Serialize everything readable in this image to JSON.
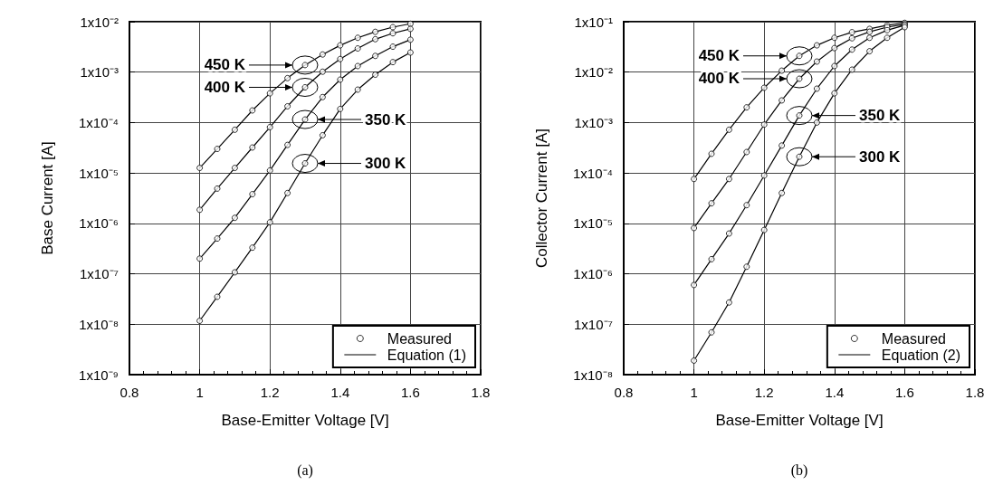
{
  "chart_data": [
    {
      "type": "scatter",
      "xlabel": "Base-Emitter Voltage [V]",
      "ylabel": "Base Current [A]",
      "log": "y",
      "grid": true,
      "legend": "bottom right",
      "xlim": [
        0.8,
        1.8
      ],
      "xticks": [
        0.8,
        1,
        1.2,
        1.4,
        1.6,
        1.8
      ],
      "ylim": [
        1e-09,
        0.01
      ],
      "yticks": [
        {
          "value": 1e-09,
          "label": "1x10⁻⁹"
        },
        {
          "value": 1e-08,
          "label": "1x10⁻⁸"
        },
        {
          "value": 1e-07,
          "label": "1x10⁻⁷"
        },
        {
          "value": 1e-06,
          "label": "1x10⁻⁶"
        },
        {
          "value": 1e-05,
          "label": "1x10⁻⁵"
        },
        {
          "value": 0.0001,
          "label": "1x10⁻⁴"
        },
        {
          "value": 0.001,
          "label": "1x10⁻³"
        },
        {
          "value": 0.01,
          "label": "1x10⁻²"
        }
      ],
      "series": [
        {
          "name": "Measured",
          "marker": "circle",
          "color": "#000000",
          "x": [
            1,
            1.05,
            1.1,
            1.15,
            1.2,
            1.25,
            1.3,
            1.35,
            1.4,
            1.45,
            1.5,
            1.55,
            1.6,
            1,
            1.05,
            1.1,
            1.15,
            1.2,
            1.25,
            1.3,
            1.35,
            1.4,
            1.45,
            1.5,
            1.55,
            1.6,
            1,
            1.05,
            1.1,
            1.15,
            1.2,
            1.25,
            1.3,
            1.35,
            1.4,
            1.45,
            1.5,
            1.55,
            1.6,
            1,
            1.05,
            1.1,
            1.15,
            1.2,
            1.25,
            1.3,
            1.35,
            1.4,
            1.45,
            1.5,
            1.55,
            1.6
          ],
          "values": [
            1.26e-05,
            3e-05,
            7.2e-05,
            0.000174,
            0.00038,
            0.00076,
            0.00138,
            0.00224,
            0.0034,
            0.0048,
            0.0063,
            0.0078,
            0.0091,
            1.86e-06,
            4.9e-06,
            1.26e-05,
            3.2e-05,
            8.1e-05,
            0.00021,
            0.0005,
            0.00102,
            0.00182,
            0.00295,
            0.0045,
            0.0059,
            0.0072,
            2e-07,
            5e-07,
            1.29e-06,
            3.8e-06,
            1.12e-05,
            3.6e-05,
            0.000115,
            0.00032,
            0.00071,
            0.00132,
            0.0021,
            0.0032,
            0.0044,
            1.17e-08,
            3.5e-08,
            1.07e-07,
            3.3e-07,
            1.05e-06,
            4e-06,
            1.55e-05,
            5.6e-05,
            0.000186,
            0.00045,
            0.00089,
            0.00158,
            0.00245
          ]
        },
        {
          "name": "Equation (1)",
          "type": "line",
          "marker": "none",
          "line_style": "solid",
          "color": "#000000",
          "x": [
            1,
            1.05,
            1.1,
            1.15,
            1.2,
            1.25,
            1.3,
            1.35,
            1.4,
            1.45,
            1.5,
            1.55,
            1.6,
            null,
            1,
            1.05,
            1.1,
            1.15,
            1.2,
            1.25,
            1.3,
            1.35,
            1.4,
            1.45,
            1.5,
            1.55,
            1.6,
            null,
            1,
            1.05,
            1.1,
            1.15,
            1.2,
            1.25,
            1.3,
            1.35,
            1.4,
            1.45,
            1.5,
            1.55,
            1.6,
            null,
            1,
            1.05,
            1.1,
            1.15,
            1.2,
            1.25,
            1.3,
            1.35,
            1.4,
            1.45,
            1.5,
            1.55,
            1.6
          ],
          "values": [
            1.26e-05,
            3e-05,
            7.2e-05,
            0.000174,
            0.00038,
            0.00076,
            0.00138,
            0.00224,
            0.0034,
            0.0048,
            0.0063,
            0.0078,
            0.0091,
            null,
            1.86e-06,
            4.9e-06,
            1.26e-05,
            3.2e-05,
            8.1e-05,
            0.00021,
            0.0005,
            0.00102,
            0.00182,
            0.00295,
            0.0045,
            0.0059,
            0.0072,
            null,
            2e-07,
            5e-07,
            1.29e-06,
            3.8e-06,
            1.12e-05,
            3.6e-05,
            0.000115,
            0.00032,
            0.00071,
            0.00132,
            0.0021,
            0.0032,
            0.0044,
            null,
            1.17e-08,
            3.5e-08,
            1.07e-07,
            3.3e-07,
            1.05e-06,
            4e-06,
            1.55e-05,
            5.6e-05,
            0.000186,
            0.00045,
            0.00089,
            0.00158,
            0.00245
          ]
        }
      ],
      "annotations": [
        "450 K",
        "400 K",
        "350 K",
        "300 K",
        "(a)"
      ]
    },
    {
      "type": "scatter",
      "xlabel": "Base-Emitter Voltage [V]",
      "ylabel": "Collector Current [A]",
      "log": "y",
      "grid": true,
      "legend": "bottom right",
      "xlim": [
        0.8,
        1.8
      ],
      "xticks": [
        0.8,
        1,
        1.2,
        1.4,
        1.6,
        1.8
      ],
      "ylim": [
        1e-08,
        0.1
      ],
      "yticks": [
        {
          "value": 1e-08,
          "label": "1x10⁻⁸"
        },
        {
          "value": 1e-07,
          "label": "1x10⁻⁷"
        },
        {
          "value": 1e-06,
          "label": "1x10⁻⁶"
        },
        {
          "value": 1e-05,
          "label": "1x10⁻⁵"
        },
        {
          "value": 0.0001,
          "label": "1x10⁻⁴"
        },
        {
          "value": 0.001,
          "label": "1x10⁻³"
        },
        {
          "value": 0.01,
          "label": "1x10⁻²"
        },
        {
          "value": 0.1,
          "label": "1x10⁻¹"
        }
      ],
      "series": [
        {
          "name": "Measured",
          "marker": "circle",
          "color": "#000000",
          "x": [
            1,
            1.05,
            1.1,
            1.15,
            1.2,
            1.25,
            1.3,
            1.35,
            1.4,
            1.45,
            1.5,
            1.55,
            1.6,
            1,
            1.05,
            1.1,
            1.15,
            1.2,
            1.25,
            1.3,
            1.35,
            1.4,
            1.45,
            1.5,
            1.55,
            1.6,
            1,
            1.05,
            1.1,
            1.15,
            1.2,
            1.25,
            1.3,
            1.35,
            1.4,
            1.45,
            1.5,
            1.55,
            1.6,
            1,
            1.05,
            1.1,
            1.15,
            1.2,
            1.25,
            1.3,
            1.35,
            1.4,
            1.45,
            1.5,
            1.55,
            1.6
          ],
          "values": [
            7.6e-05,
            0.00024,
            0.00072,
            0.002,
            0.0049,
            0.0107,
            0.021,
            0.034,
            0.048,
            0.062,
            0.072,
            0.085,
            0.095,
            8.1e-06,
            2.5e-05,
            7.6e-05,
            0.00026,
            0.00091,
            0.00275,
            0.0074,
            0.0162,
            0.03,
            0.047,
            0.063,
            0.078,
            0.089,
            6e-07,
            1.95e-06,
            6.3e-06,
            2.3e-05,
            8.9e-05,
            0.00035,
            0.00138,
            0.0047,
            0.0132,
            0.028,
            0.048,
            0.068,
            0.085,
            1.9e-08,
            6.9e-08,
            2.7e-07,
            1.38e-06,
            7.4e-06,
            4e-05,
            0.00021,
            0.001,
            0.0038,
            0.0112,
            0.026,
            0.048,
            0.078
          ]
        },
        {
          "name": "Equation (2)",
          "type": "line",
          "marker": "none",
          "line_style": "solid",
          "color": "#000000",
          "x": [
            1,
            1.05,
            1.1,
            1.15,
            1.2,
            1.25,
            1.3,
            1.35,
            1.4,
            1.45,
            1.5,
            1.55,
            1.6,
            null,
            1,
            1.05,
            1.1,
            1.15,
            1.2,
            1.25,
            1.3,
            1.35,
            1.4,
            1.45,
            1.5,
            1.55,
            1.6,
            null,
            1,
            1.05,
            1.1,
            1.15,
            1.2,
            1.25,
            1.3,
            1.35,
            1.4,
            1.45,
            1.5,
            1.55,
            1.6,
            null,
            1,
            1.05,
            1.1,
            1.15,
            1.2,
            1.25,
            1.3,
            1.35,
            1.4,
            1.45,
            1.5,
            1.55,
            1.6
          ],
          "values": [
            7.6e-05,
            0.00024,
            0.00072,
            0.002,
            0.0049,
            0.0107,
            0.021,
            0.034,
            0.048,
            0.062,
            0.072,
            0.085,
            0.095,
            null,
            8.1e-06,
            2.5e-05,
            7.6e-05,
            0.00026,
            0.00091,
            0.00275,
            0.0074,
            0.0162,
            0.03,
            0.047,
            0.063,
            0.078,
            0.089,
            null,
            6e-07,
            1.95e-06,
            6.3e-06,
            2.3e-05,
            8.9e-05,
            0.00035,
            0.00138,
            0.0047,
            0.0132,
            0.028,
            0.048,
            0.068,
            0.085,
            null,
            1.9e-08,
            6.9e-08,
            2.7e-07,
            1.38e-06,
            7.4e-06,
            4e-05,
            0.00021,
            0.001,
            0.0038,
            0.0112,
            0.026,
            0.048,
            0.078
          ]
        }
      ],
      "annotations": [
        "450 K",
        "400 K",
        "350 K",
        "300 K",
        "(b)"
      ]
    }
  ]
}
